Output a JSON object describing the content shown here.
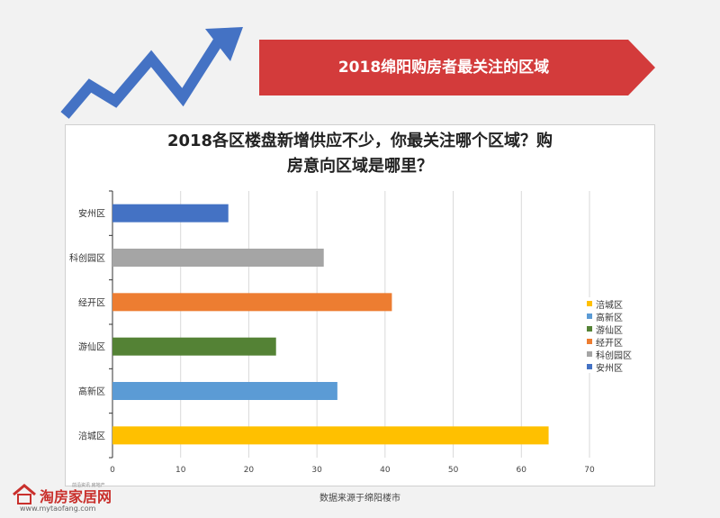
{
  "banner": {
    "title": "2018绵阳购房者最关注的区域"
  },
  "chart_data": {
    "type": "bar",
    "orientation": "horizontal",
    "title": "2018各区楼盘新增供应不少，你最关注哪个区域？购房意向区域是哪里？",
    "title_lines": [
      "2018各区楼盘新增供应不少，你最关注哪个区域？购",
      "房意向区域是哪里？"
    ],
    "categories": [
      "安州区",
      "科创园区",
      "经开区",
      "游仙区",
      "高新区",
      "涪城区"
    ],
    "values": [
      17,
      31,
      41,
      24,
      33,
      64
    ],
    "colors": [
      "#4472c4",
      "#a5a5a5",
      "#ed7d31",
      "#548235",
      "#5b9bd5",
      "#ffc000"
    ],
    "xlim": [
      0,
      70
    ],
    "xticks": [
      0,
      10,
      20,
      30,
      40,
      50,
      60,
      70
    ],
    "xlabel": "",
    "ylabel": "",
    "grid": true,
    "legend_position": "right",
    "legend": [
      {
        "label": "涪城区",
        "color": "#ffc000"
      },
      {
        "label": "高新区",
        "color": "#5b9bd5"
      },
      {
        "label": "游仙区",
        "color": "#548235"
      },
      {
        "label": "经开区",
        "color": "#ed7d31"
      },
      {
        "label": "科创园区",
        "color": "#a5a5a5"
      },
      {
        "label": "安州区",
        "color": "#4472c4"
      }
    ]
  },
  "footer": {
    "source": "数据来源于绵阳楼市"
  },
  "logo": {
    "name": "淘房家居网",
    "slogan": "前沿资讯 房地产",
    "url": "www.mytaofang.com"
  }
}
